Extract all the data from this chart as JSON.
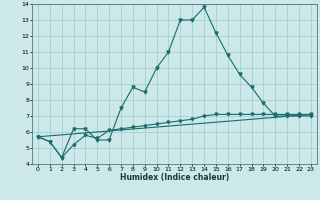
{
  "xlabel": "Humidex (Indice chaleur)",
  "xlim": [
    -0.5,
    23.5
  ],
  "ylim": [
    4,
    14
  ],
  "xticks": [
    0,
    1,
    2,
    3,
    4,
    5,
    6,
    7,
    8,
    9,
    10,
    11,
    12,
    13,
    14,
    15,
    16,
    17,
    18,
    19,
    20,
    21,
    22,
    23
  ],
  "yticks": [
    4,
    5,
    6,
    7,
    8,
    9,
    10,
    11,
    12,
    13,
    14
  ],
  "bg_color": "#cce8e8",
  "grid_color": "#99cccc",
  "line_color": "#1a6b6b",
  "series0_x": [
    0,
    1,
    2,
    3,
    4,
    5,
    6,
    7,
    8,
    9,
    10,
    11,
    12,
    13,
    14,
    15,
    16,
    17,
    18,
    19,
    20,
    21,
    22,
    23
  ],
  "series0_y": [
    5.7,
    5.4,
    4.4,
    6.2,
    6.2,
    5.5,
    5.5,
    7.5,
    8.8,
    8.5,
    10.0,
    11.0,
    13.0,
    13.0,
    13.8,
    12.2,
    10.8,
    9.6,
    8.8,
    7.8,
    7.0,
    7.0,
    7.0,
    7.0
  ],
  "series1_x": [
    0,
    1,
    2,
    3,
    4,
    5,
    6,
    7,
    8,
    9,
    10,
    11,
    12,
    13,
    14,
    15,
    16,
    17,
    18,
    19,
    20,
    21,
    22,
    23
  ],
  "series1_y": [
    5.7,
    5.4,
    4.4,
    5.2,
    5.8,
    5.6,
    6.1,
    6.2,
    6.3,
    6.4,
    6.5,
    6.6,
    6.7,
    6.8,
    7.0,
    7.1,
    7.1,
    7.1,
    7.1,
    7.1,
    7.1,
    7.1,
    7.1,
    7.1
  ],
  "series2_x": [
    0,
    23
  ],
  "series2_y": [
    5.7,
    7.1
  ]
}
